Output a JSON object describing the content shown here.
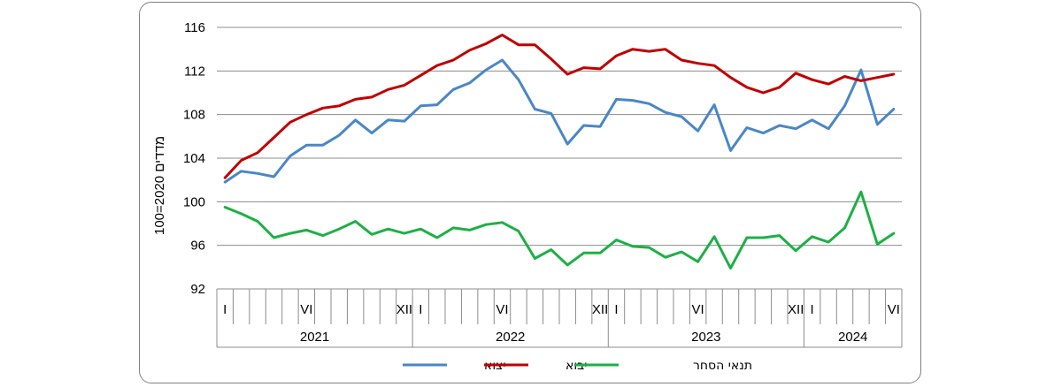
{
  "chart_data": {
    "type": "line",
    "ylabel": "מדדים 2020=100",
    "ylim": [
      92,
      116
    ],
    "yticks": [
      92,
      96,
      100,
      104,
      108,
      112,
      116
    ],
    "grid": "horizontal",
    "legend_position": "bottom",
    "month_labels": [
      "I",
      "",
      "",
      "",
      "",
      "VI",
      "",
      "",
      "",
      "",
      "",
      "XII",
      "I",
      "",
      "",
      "",
      "",
      "VI",
      "",
      "",
      "",
      "",
      "",
      "XII",
      "I",
      "",
      "",
      "",
      "",
      "VI",
      "",
      "",
      "",
      "",
      "",
      "XII",
      "I",
      "",
      "",
      "",
      "",
      "VI"
    ],
    "years": [
      {
        "label": "2021",
        "months": 12
      },
      {
        "label": "2022",
        "months": 12
      },
      {
        "label": "2023",
        "months": 12
      },
      {
        "label": "2024",
        "months": 6
      }
    ],
    "series": [
      {
        "name": "יצוא",
        "color": "#4a86c8",
        "values": [
          101.8,
          102.8,
          102.6,
          102.3,
          104.2,
          105.2,
          105.2,
          106.1,
          107.5,
          106.3,
          107.5,
          107.4,
          108.8,
          108.9,
          110.3,
          110.9,
          112.1,
          113.0,
          111.2,
          108.5,
          108.1,
          105.3,
          107.0,
          106.9,
          109.4,
          109.3,
          109.0,
          108.2,
          107.8,
          106.5,
          108.9,
          104.7,
          106.8,
          106.3,
          107.0,
          106.7,
          107.5,
          106.7,
          108.8,
          112.1,
          107.1,
          108.5
        ]
      },
      {
        "name": "יבוא",
        "color": "#c00000",
        "values": [
          102.2,
          103.8,
          104.5,
          105.9,
          107.3,
          108.0,
          108.6,
          108.8,
          109.4,
          109.6,
          110.3,
          110.7,
          111.6,
          112.5,
          113.0,
          113.9,
          114.5,
          115.3,
          114.4,
          114.4,
          113.1,
          111.7,
          112.3,
          112.2,
          113.4,
          114.0,
          113.8,
          114.0,
          113.0,
          112.7,
          112.5,
          111.4,
          110.5,
          110.0,
          110.5,
          111.8,
          111.2,
          110.8,
          111.5,
          111.1,
          111.4,
          111.7
        ]
      },
      {
        "name": "תנאי הסחר",
        "color": "#1db045",
        "values": [
          99.5,
          98.9,
          98.2,
          96.7,
          97.1,
          97.4,
          96.9,
          97.5,
          98.2,
          97.0,
          97.5,
          97.1,
          97.5,
          96.7,
          97.6,
          97.4,
          97.9,
          98.1,
          97.3,
          94.8,
          95.6,
          94.2,
          95.3,
          95.3,
          96.5,
          95.9,
          95.8,
          94.9,
          95.4,
          94.5,
          96.8,
          93.9,
          96.7,
          96.7,
          96.9,
          95.5,
          96.8,
          96.3,
          97.6,
          100.9,
          96.1,
          97.1
        ]
      }
    ]
  }
}
